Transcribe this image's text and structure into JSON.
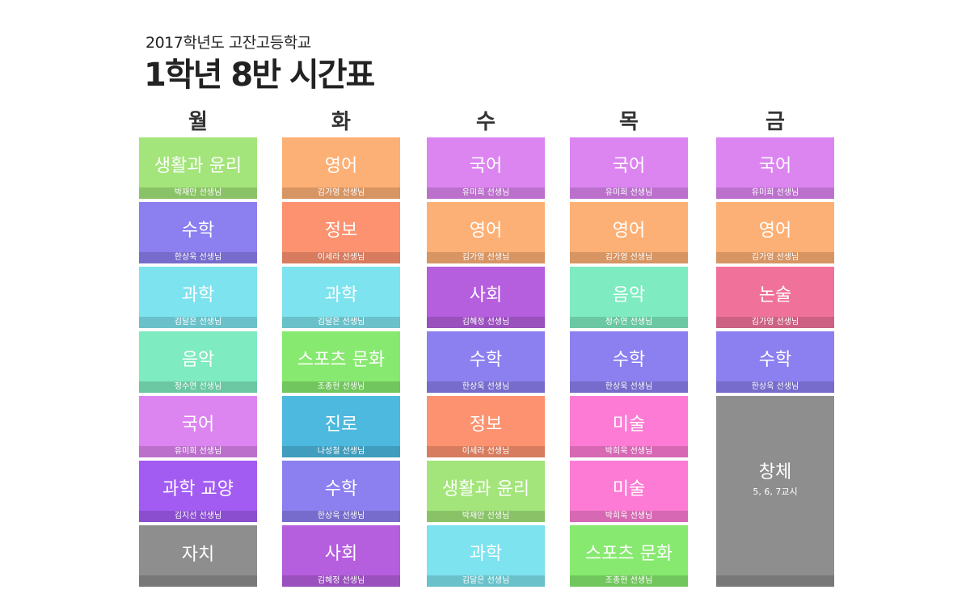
{
  "header": {
    "school": "2017학년도 고잔고등학교",
    "title": "1학년 8반 시간표"
  },
  "days": [
    "월",
    "화",
    "수",
    "목",
    "금"
  ],
  "timetable": {
    "mon": [
      {
        "subject": "생활과 윤리",
        "teacher": "박재만 선생님",
        "color": "#A3E57A"
      },
      {
        "subject": "수학",
        "teacher": "한상욱 선생님",
        "color": "#8C7FF0"
      },
      {
        "subject": "과학",
        "teacher": "김달은 선생님",
        "color": "#7DE3EE"
      },
      {
        "subject": "음악",
        "teacher": "정수연 선생님",
        "color": "#7EEBC0"
      },
      {
        "subject": "국어",
        "teacher": "유미희 선생님",
        "color": "#DC85F0"
      },
      {
        "subject": "과학 교양",
        "teacher": "김지선 선생님",
        "color": "#A35CF2"
      },
      {
        "subject": "자치",
        "teacher": "",
        "color": "#8E8E8E"
      }
    ],
    "tue": [
      {
        "subject": "영어",
        "teacher": "김가영 선생님",
        "color": "#FDB075"
      },
      {
        "subject": "정보",
        "teacher": "이세라 선생님",
        "color": "#FD9270"
      },
      {
        "subject": "과학",
        "teacher": "김달은 선생님",
        "color": "#7DE3EE"
      },
      {
        "subject": "스포츠 문화",
        "teacher": "조종현 선생님",
        "color": "#87E96F"
      },
      {
        "subject": "진로",
        "teacher": "나성철 선생님",
        "color": "#4DB9DE"
      },
      {
        "subject": "수학",
        "teacher": "한상욱 선생님",
        "color": "#8C7FF0"
      },
      {
        "subject": "사회",
        "teacher": "김혜정 선생님",
        "color": "#B55EDE"
      }
    ],
    "wed": [
      {
        "subject": "국어",
        "teacher": "유미희 선생님",
        "color": "#DC85F0"
      },
      {
        "subject": "영어",
        "teacher": "김가영 선생님",
        "color": "#FDB075"
      },
      {
        "subject": "사회",
        "teacher": "김혜정 선생님",
        "color": "#B55EDE"
      },
      {
        "subject": "수학",
        "teacher": "한상욱 선생님",
        "color": "#8C7FF0"
      },
      {
        "subject": "정보",
        "teacher": "이세라 선생님",
        "color": "#FD9270"
      },
      {
        "subject": "생활과 윤리",
        "teacher": "박재만 선생님",
        "color": "#A3E57A"
      },
      {
        "subject": "과학",
        "teacher": "김달은 선생님",
        "color": "#7DE3EE"
      }
    ],
    "thu": [
      {
        "subject": "국어",
        "teacher": "유미희 선생님",
        "color": "#DC85F0"
      },
      {
        "subject": "영어",
        "teacher": "김가영 선생님",
        "color": "#FDB075"
      },
      {
        "subject": "음악",
        "teacher": "정수연 선생님",
        "color": "#7EEBC0"
      },
      {
        "subject": "수학",
        "teacher": "한상욱 선생님",
        "color": "#8C7FF0"
      },
      {
        "subject": "미술",
        "teacher": "박희욱 선생님",
        "color": "#FD7BD4"
      },
      {
        "subject": "미술",
        "teacher": "박희욱 선생님",
        "color": "#FD7BD4"
      },
      {
        "subject": "스포츠 문화",
        "teacher": "조종현 선생님",
        "color": "#87E96F"
      }
    ],
    "fri": [
      {
        "subject": "국어",
        "teacher": "유미희 선생님",
        "color": "#DC85F0"
      },
      {
        "subject": "영어",
        "teacher": "김가영 선생님",
        "color": "#FDB075"
      },
      {
        "subject": "논술",
        "teacher": "김가영 선생님",
        "color": "#F0729A"
      },
      {
        "subject": "수학",
        "teacher": "한상욱 선생님",
        "color": "#8C7FF0"
      }
    ],
    "fri_block": {
      "subject": "창체",
      "note": "5, 6, 7교시",
      "color": "#8E8E8E"
    }
  }
}
